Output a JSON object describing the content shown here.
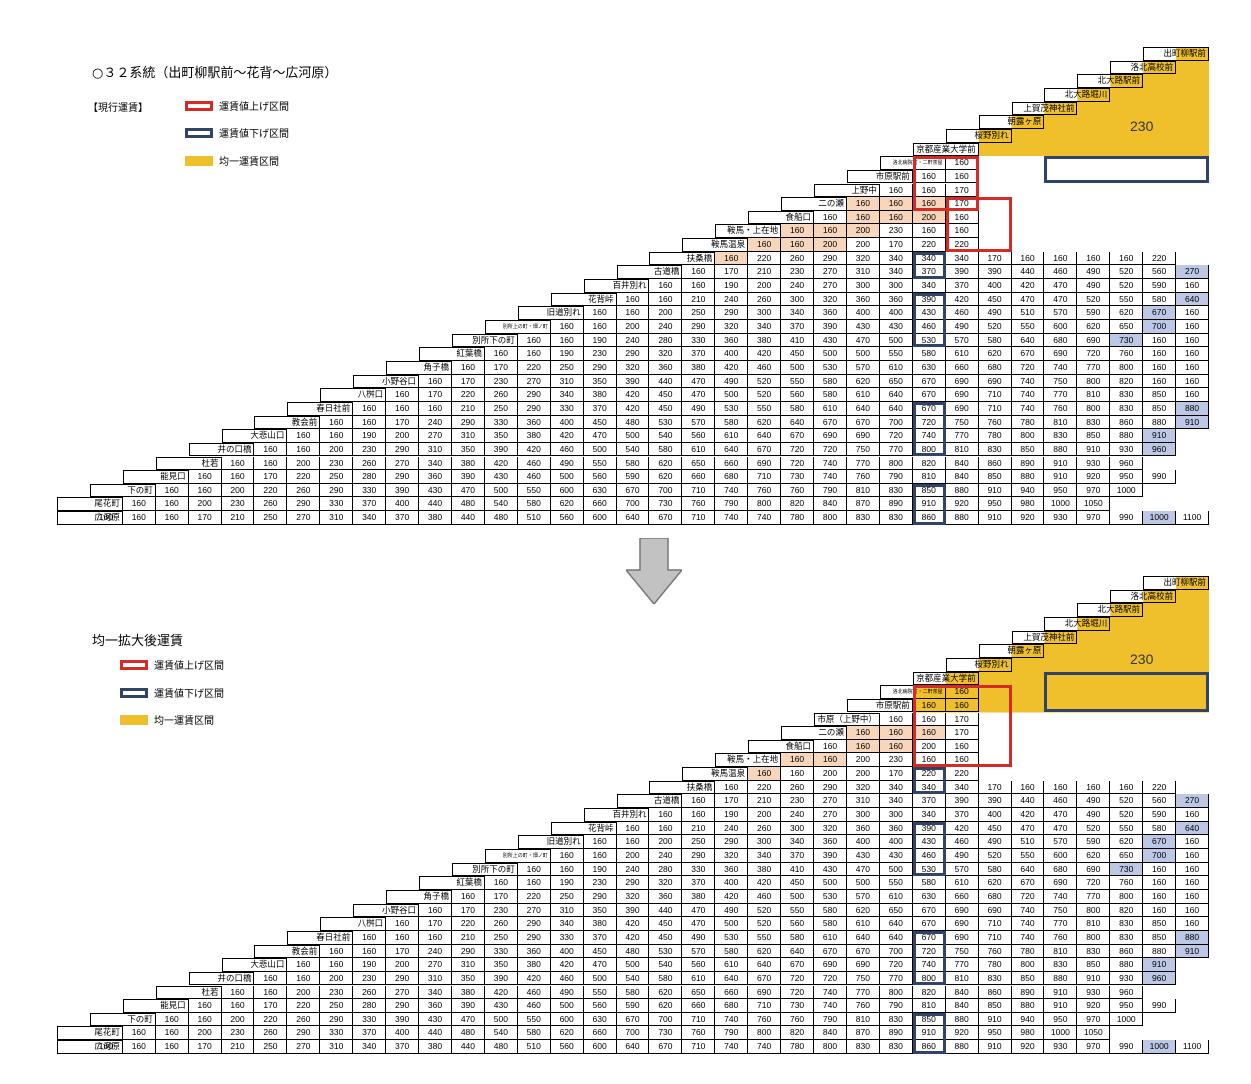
{
  "section1": {
    "title": "○３２系統（出町柳駅前～花背～広河原）",
    "subtitle": "【現行運賃】",
    "legend": {
      "up": "運賃値上げ区間",
      "down": "運賃値下げ区間",
      "flat": "均一運賃区間"
    },
    "flat_fare": "230"
  },
  "section2": {
    "title": "均一拡大後運賃",
    "legend": {
      "up": "運賃値上げ区間",
      "down": "運賃値下げ区間",
      "flat": "均一運賃区間"
    },
    "flat_fare": "230"
  },
  "stops1": [
    "出町柳駅前",
    "洛北高校前",
    "北大路駅前",
    "北大路堀川",
    "上賀茂神社前",
    "朝露ヶ原",
    "桜野別れ",
    "京都産業大学前",
    "洛北病院前・二軒茶屋",
    "市原駅前",
    "上野中",
    "二の瀬",
    "食船口",
    "鞍馬・上在地",
    "鞍馬温泉",
    "扶桑橋",
    "古道橋",
    "百井別れ",
    "花背峠",
    "旧道別れ",
    "別所上の町・畑ノ町",
    "別所下の町",
    "紅葉橋",
    "角子橋",
    "小野谷口",
    "八桝口",
    "春日社前",
    "教会前",
    "大悲山口",
    "井の口橋",
    "杜若",
    "能見口",
    "下の町",
    "尾花町",
    "広河原"
  ],
  "stops2": [
    "出町柳駅前",
    "洛北高校前",
    "北大路駅前",
    "北大路堀川",
    "上賀茂神社前",
    "朝露ヶ原",
    "桜野別れ",
    "京都産業大学前",
    "洛北病院前・二軒茶屋",
    "市原駅前",
    "市原（上野中）",
    "二の瀬",
    "食船口",
    "鞍馬・上在地",
    "鞍馬温泉",
    "扶桑橋",
    "古道橋",
    "百井別れ",
    "花背峠",
    "旧道別れ",
    "別所上の町・畑ノ町",
    "別所下の町",
    "紅葉橋",
    "角子橋",
    "小野谷口",
    "八桝口",
    "春日社前",
    "教会前",
    "大悲山口",
    "井の口橋",
    "杜若",
    "能見口",
    "下の町",
    "尾花町",
    "広河原"
  ],
  "table1": [
    [],
    [],
    [],
    [],
    [],
    [],
    [],
    [],
    [
      160
    ],
    [
      160,
      160
    ],
    [
      160,
      160,
      170
    ],
    [
      160,
      160,
      160,
      170
    ],
    [
      160,
      160,
      160,
      200,
      160
    ],
    [
      160,
      160,
      200,
      230,
      160,
      160
    ],
    [
      160,
      160,
      200,
      200,
      170,
      220,
      220
    ],
    [
      160,
      220,
      260,
      290,
      320,
      340,
      340,
      340,
      170,
      160,
      160,
      160,
      160,
      220
    ],
    [
      160,
      170,
      210,
      230,
      270,
      310,
      340,
      370,
      390,
      390,
      440,
      460,
      490,
      520,
      560,
      270
    ],
    [
      160,
      160,
      190,
      200,
      240,
      270,
      300,
      300,
      340,
      370,
      400,
      420,
      470,
      490,
      520,
      590,
      160
    ],
    [
      160,
      160,
      210,
      240,
      260,
      300,
      320,
      360,
      360,
      390,
      420,
      450,
      470,
      470,
      520,
      550,
      580,
      640
    ],
    [
      160,
      160,
      200,
      250,
      290,
      300,
      340,
      360,
      400,
      400,
      430,
      460,
      490,
      510,
      570,
      590,
      620,
      670,
      160
    ],
    [
      160,
      160,
      200,
      240,
      290,
      320,
      340,
      370,
      390,
      430,
      430,
      460,
      490,
      520,
      550,
      600,
      620,
      650,
      700,
      160
    ],
    [
      160,
      160,
      190,
      240,
      280,
      330,
      360,
      380,
      410,
      430,
      470,
      500,
      530,
      570,
      580,
      640,
      680,
      690,
      730,
      160,
      160
    ],
    [
      160,
      160,
      190,
      230,
      290,
      320,
      370,
      400,
      420,
      450,
      500,
      500,
      550,
      580,
      610,
      620,
      670,
      690,
      720,
      760,
      160,
      160
    ],
    [
      160,
      170,
      220,
      250,
      290,
      320,
      360,
      380,
      420,
      460,
      500,
      530,
      570,
      610,
      630,
      660,
      680,
      720,
      740,
      770,
      800,
      160,
      160
    ],
    [
      160,
      170,
      230,
      270,
      310,
      350,
      390,
      440,
      470,
      490,
      520,
      550,
      580,
      620,
      650,
      670,
      690,
      690,
      740,
      750,
      800,
      820,
      160,
      160
    ],
    [
      160,
      170,
      220,
      260,
      290,
      340,
      380,
      420,
      450,
      470,
      500,
      520,
      560,
      580,
      610,
      640,
      670,
      690,
      710,
      740,
      770,
      810,
      830,
      850,
      160
    ],
    [
      160,
      160,
      160,
      210,
      250,
      290,
      330,
      370,
      420,
      450,
      490,
      530,
      550,
      580,
      610,
      640,
      640,
      670,
      690,
      710,
      740,
      760,
      800,
      830,
      850,
      880
    ],
    [
      160,
      160,
      170,
      240,
      290,
      330,
      360,
      400,
      450,
      480,
      530,
      570,
      580,
      620,
      640,
      670,
      670,
      700,
      720,
      750,
      760,
      780,
      810,
      830,
      860,
      880,
      910
    ],
    [
      160,
      160,
      190,
      200,
      270,
      310,
      350,
      380,
      420,
      470,
      500,
      540,
      560,
      610,
      640,
      670,
      690,
      690,
      720,
      740,
      770,
      780,
      800,
      830,
      850,
      880,
      910
    ],
    [
      160,
      160,
      200,
      230,
      290,
      310,
      350,
      390,
      420,
      460,
      500,
      540,
      580,
      610,
      640,
      670,
      720,
      720,
      750,
      770,
      800,
      810,
      830,
      850,
      880,
      910,
      930,
      960
    ],
    [
      160,
      160,
      200,
      230,
      260,
      270,
      340,
      380,
      420,
      460,
      490,
      550,
      580,
      620,
      650,
      660,
      690,
      720,
      740,
      770,
      800,
      820,
      840,
      860,
      890,
      910,
      930,
      960
    ],
    [
      160,
      160,
      170,
      220,
      250,
      280,
      290,
      360,
      390,
      430,
      460,
      500,
      560,
      590,
      620,
      660,
      680,
      710,
      730,
      740,
      760,
      790,
      810,
      840,
      850,
      880,
      910,
      920,
      950,
      990
    ],
    [
      160,
      160,
      200,
      220,
      260,
      290,
      330,
      390,
      430,
      470,
      500,
      550,
      600,
      630,
      670,
      700,
      710,
      740,
      760,
      760,
      790,
      810,
      830,
      850,
      880,
      910,
      940,
      950,
      970,
      1000
    ],
    [
      160,
      160,
      200,
      230,
      260,
      290,
      330,
      370,
      400,
      440,
      480,
      540,
      580,
      620,
      660,
      700,
      730,
      760,
      790,
      800,
      820,
      840,
      870,
      890,
      910,
      920,
      950,
      980,
      1000,
      1050
    ],
    [
      160,
      160,
      160,
      170,
      210,
      250,
      270,
      310,
      340,
      370,
      380,
      440,
      480,
      510,
      560,
      600,
      640,
      670,
      710,
      740,
      740,
      780,
      800,
      830,
      830,
      860,
      880,
      910,
      920,
      930,
      970,
      990,
      1000,
      1100
    ]
  ]
}
